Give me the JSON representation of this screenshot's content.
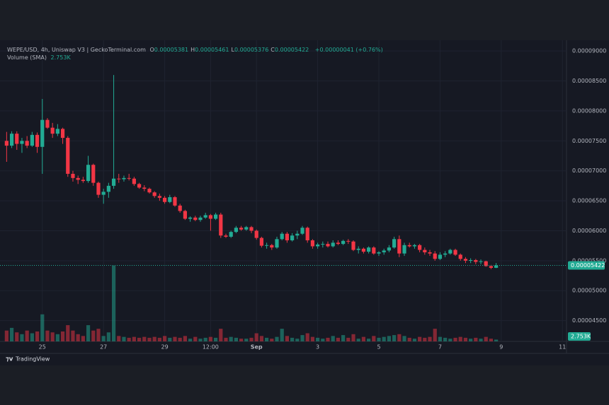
{
  "chart_data": {
    "type": "candlestick",
    "title": "WEPE/USD, 4h, Uniswap V3 | GeckoTerminal.com",
    "ohlc_legend": [
      {
        "label": "O",
        "value": "0.00005381"
      },
      {
        "label": "H",
        "value": "0.00005461"
      },
      {
        "label": "L",
        "value": "0.00005376"
      },
      {
        "label": "C",
        "value": "0.00005422"
      }
    ],
    "change": "+0.00000041 (+0.76%)",
    "volume_title": "Volume (SMA)",
    "volume_sma": {
      "value": 2753,
      "label": "2.753K"
    },
    "last_price": {
      "value": 5.422e-05,
      "label": "0.00005422"
    },
    "up_color": "#22ab94",
    "down_color": "#f23645",
    "grid": true,
    "brand": "TradingView",
    "xlim": [
      -1.3,
      109.8
    ],
    "xticks": [
      {
        "value": 7,
        "label": "25"
      },
      {
        "value": 19,
        "label": "27"
      },
      {
        "value": 31,
        "label": "29"
      },
      {
        "value": 40,
        "label": "12:00"
      },
      {
        "value": 49,
        "label": "Sep"
      },
      {
        "value": 61,
        "label": "3"
      },
      {
        "value": 73,
        "label": "5"
      },
      {
        "value": 85,
        "label": "7"
      },
      {
        "value": 97,
        "label": "9"
      },
      {
        "value": 109,
        "label": "11"
      }
    ],
    "ylim": [
      4.153e-05,
      9.12e-05
    ],
    "yticks": [
      {
        "value": 9e-05,
        "label": "0.00009000"
      },
      {
        "value": 8.5e-05,
        "label": "0.00008500"
      },
      {
        "value": 8e-05,
        "label": "0.00008000"
      },
      {
        "value": 7.5e-05,
        "label": "0.00007500"
      },
      {
        "value": 7e-05,
        "label": "0.00007000"
      },
      {
        "value": 6.5e-05,
        "label": "0.00006500"
      },
      {
        "value": 6e-05,
        "label": "0.00006000"
      },
      {
        "value": 5.5e-05,
        "label": "0.00005500"
      },
      {
        "value": 5e-05,
        "label": "0.00005000"
      },
      {
        "value": 4.5e-05,
        "label": "0.00004500"
      }
    ],
    "volume_lim": [
      0,
      49000
    ],
    "open": [
      7.5e-05,
      7.42e-05,
      7.62e-05,
      7.45e-05,
      7.5e-05,
      7.42e-05,
      7.6e-05,
      7.4e-05,
      7.85e-05,
      7.72e-05,
      7.62e-05,
      7.7e-05,
      7.55e-05,
      6.95e-05,
      6.88e-05,
      6.85e-05,
      6.83e-05,
      7.1e-05,
      6.8e-05,
      6.6e-05,
      6.65e-05,
      6.75e-05,
      6.87e-05,
      6.86e-05,
      6.88e-05,
      6.87e-05,
      6.78e-05,
      6.72e-05,
      6.7e-05,
      6.64e-05,
      6.58e-05,
      6.55e-05,
      6.48e-05,
      6.56e-05,
      6.42e-05,
      6.33e-05,
      6.2e-05,
      6.22e-05,
      6.18e-05,
      6.22e-05,
      6.26e-05,
      6.2e-05,
      6.27e-05,
      5.92e-05,
      5.9e-05,
      5.98e-05,
      6.05e-05,
      6.02e-05,
      6.06e-05,
      6e-05,
      5.88e-05,
      5.75e-05,
      5.76e-05,
      5.72e-05,
      5.86e-05,
      5.95e-05,
      5.84e-05,
      5.92e-05,
      5.95e-05,
      6.05e-05,
      5.84e-05,
      5.74e-05,
      5.77e-05,
      5.78e-05,
      5.74e-05,
      5.8e-05,
      5.78e-05,
      5.83e-05,
      5.82e-05,
      5.68e-05,
      5.7e-05,
      5.65e-05,
      5.72e-05,
      5.62e-05,
      5.64e-05,
      5.67e-05,
      5.72e-05,
      5.86e-05,
      5.62e-05,
      5.76e-05,
      5.74e-05,
      5.76e-05,
      5.68e-05,
      5.64e-05,
      5.62e-05,
      5.53e-05,
      5.6e-05,
      5.62e-05,
      5.68e-05,
      5.6e-05,
      5.53e-05,
      5.5e-05,
      5.51e-05,
      5.48e-05,
      5.49e-05,
      5.41e-05,
      5.381e-05
    ],
    "high": [
      7.65e-05,
      7.66e-05,
      7.66e-05,
      7.55e-05,
      7.58e-05,
      7.65e-05,
      7.64e-05,
      8.2e-05,
      7.88e-05,
      7.8e-05,
      7.78e-05,
      7.72e-05,
      7.58e-05,
      7e-05,
      6.92e-05,
      6.9e-05,
      7.25e-05,
      7.12e-05,
      6.82e-05,
      6.7e-05,
      6.8e-05,
      8.6e-05,
      6.95e-05,
      6.92e-05,
      6.95e-05,
      6.9e-05,
      6.8e-05,
      6.76e-05,
      6.72e-05,
      6.66e-05,
      6.62e-05,
      6.58e-05,
      6.6e-05,
      6.58e-05,
      6.45e-05,
      6.35e-05,
      6.24e-05,
      6.25e-05,
      6.25e-05,
      6.3e-05,
      6.28e-05,
      6.3e-05,
      6.3e-05,
      5.95e-05,
      6e-05,
      6.08e-05,
      6.08e-05,
      6.08e-05,
      6.08e-05,
      6.02e-05,
      5.9e-05,
      5.8e-05,
      5.78e-05,
      5.9e-05,
      5.98e-05,
      5.98e-05,
      5.96e-05,
      6e-05,
      6.08e-05,
      6.07e-05,
      5.86e-05,
      5.8e-05,
      5.82e-05,
      5.82e-05,
      5.84e-05,
      5.84e-05,
      5.85e-05,
      5.86e-05,
      5.84e-05,
      5.74e-05,
      5.72e-05,
      5.74e-05,
      5.74e-05,
      5.66e-05,
      5.7e-05,
      5.76e-05,
      5.9e-05,
      5.92e-05,
      5.8e-05,
      5.8e-05,
      5.78e-05,
      5.78e-05,
      5.72e-05,
      5.68e-05,
      5.66e-05,
      5.64e-05,
      5.66e-05,
      5.7e-05,
      5.7e-05,
      5.62e-05,
      5.56e-05,
      5.54e-05,
      5.53e-05,
      5.52e-05,
      5.5e-05,
      5.43e-05,
      5.461e-05
    ],
    "low": [
      7.15e-05,
      7.38e-05,
      7.35e-05,
      7.3e-05,
      7.38e-05,
      7.4e-05,
      7.3e-05,
      6.95e-05,
      7.7e-05,
      7.55e-05,
      7.58e-05,
      7.45e-05,
      6.9e-05,
      6.82e-05,
      6.78e-05,
      6.8e-05,
      6.8e-05,
      6.75e-05,
      6.55e-05,
      6.45e-05,
      6.55e-05,
      6.7e-05,
      6.8e-05,
      6.82e-05,
      6.84e-05,
      6.75e-05,
      6.7e-05,
      6.66e-05,
      6.62e-05,
      6.55e-05,
      6.5e-05,
      6.45e-05,
      6.46e-05,
      6.4e-05,
      6.3e-05,
      6.18e-05,
      6.15e-05,
      6.16e-05,
      6.15e-05,
      6.2e-05,
      6e-05,
      6.18e-05,
      5.88e-05,
      5.88e-05,
      5.88e-05,
      5.96e-05,
      6e-05,
      6e-05,
      5.96e-05,
      5.85e-05,
      5.72e-05,
      5.7e-05,
      5.68e-05,
      5.7e-05,
      5.84e-05,
      5.8e-05,
      5.82e-05,
      5.86e-05,
      5.93e-05,
      5.8e-05,
      5.7e-05,
      5.7e-05,
      5.72e-05,
      5.72e-05,
      5.72e-05,
      5.76e-05,
      5.76e-05,
      5.78e-05,
      5.66e-05,
      5.62e-05,
      5.62e-05,
      5.62e-05,
      5.6e-05,
      5.58e-05,
      5.6e-05,
      5.64e-05,
      5.7e-05,
      5.56e-05,
      5.58e-05,
      5.72e-05,
      5.7e-05,
      5.64e-05,
      5.6e-05,
      5.58e-05,
      5.5e-05,
      5.51e-05,
      5.56e-05,
      5.6e-05,
      5.58e-05,
      5.5e-05,
      5.46e-05,
      5.46e-05,
      5.44e-05,
      5.44e-05,
      5.4e-05,
      5.36e-05,
      5.376e-05
    ],
    "close": [
      7.42e-05,
      7.62e-05,
      7.45e-05,
      7.5e-05,
      7.42e-05,
      7.6e-05,
      7.4e-05,
      7.85e-05,
      7.72e-05,
      7.62e-05,
      7.7e-05,
      7.55e-05,
      6.95e-05,
      6.88e-05,
      6.85e-05,
      6.83e-05,
      7.1e-05,
      6.8e-05,
      6.6e-05,
      6.65e-05,
      6.75e-05,
      6.87e-05,
      6.86e-05,
      6.88e-05,
      6.87e-05,
      6.78e-05,
      6.72e-05,
      6.7e-05,
      6.64e-05,
      6.58e-05,
      6.55e-05,
      6.48e-05,
      6.56e-05,
      6.42e-05,
      6.33e-05,
      6.2e-05,
      6.22e-05,
      6.18e-05,
      6.22e-05,
      6.26e-05,
      6.2e-05,
      6.27e-05,
      5.92e-05,
      5.9e-05,
      5.98e-05,
      6.05e-05,
      6.02e-05,
      6.06e-05,
      6e-05,
      5.88e-05,
      5.75e-05,
      5.76e-05,
      5.72e-05,
      5.86e-05,
      5.95e-05,
      5.84e-05,
      5.92e-05,
      5.95e-05,
      6.05e-05,
      5.84e-05,
      5.74e-05,
      5.77e-05,
      5.78e-05,
      5.74e-05,
      5.8e-05,
      5.78e-05,
      5.83e-05,
      5.82e-05,
      5.68e-05,
      5.7e-05,
      5.65e-05,
      5.72e-05,
      5.62e-05,
      5.64e-05,
      5.67e-05,
      5.72e-05,
      5.86e-05,
      5.62e-05,
      5.76e-05,
      5.74e-05,
      5.76e-05,
      5.68e-05,
      5.64e-05,
      5.62e-05,
      5.53e-05,
      5.6e-05,
      5.62e-05,
      5.68e-05,
      5.6e-05,
      5.53e-05,
      5.5e-05,
      5.51e-05,
      5.48e-05,
      5.49e-05,
      5.41e-05,
      5.381e-05,
      5.422e-05
    ],
    "volume": [
      6000,
      7500,
      5000,
      4000,
      6000,
      4500,
      5500,
      15000,
      6000,
      5000,
      4000,
      5500,
      9000,
      6000,
      4000,
      3000,
      9000,
      6000,
      7000,
      3000,
      5000,
      42000,
      3000,
      2500,
      2000,
      2500,
      2000,
      2500,
      2000,
      2500,
      2000,
      3000,
      2000,
      2500,
      2000,
      3000,
      1500,
      2500,
      1500,
      2000,
      2500,
      2000,
      7000,
      2000,
      2500,
      2000,
      1500,
      1500,
      2000,
      4500,
      3000,
      2000,
      1500,
      2500,
      7000,
      3000,
      2000,
      1500,
      3500,
      4500,
      2500,
      2000,
      1500,
      2000,
      3000,
      2000,
      3500,
      2000,
      4000,
      1500,
      2500,
      1500,
      3000,
      2000,
      2500,
      3000,
      3500,
      4000,
      3000,
      2000,
      1500,
      2500,
      2000,
      2500,
      7000,
      2500,
      2000,
      1500,
      2000,
      2500,
      2000,
      1500,
      2000,
      1500,
      2500,
      1500,
      1000
    ]
  }
}
